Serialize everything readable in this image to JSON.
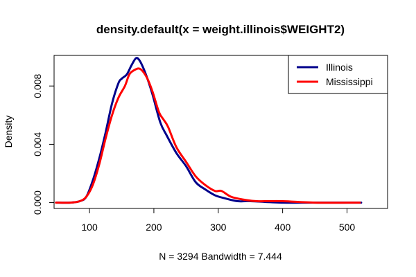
{
  "chart_data": {
    "type": "line",
    "title": "density.default(x = weight.illinois$WEIGHT2)",
    "xlabel": "N = 3294   Bandwidth = 7.444",
    "ylabel": "Density",
    "xlim": [
      45,
      563
    ],
    "ylim": [
      -0.0004,
      0.0101
    ],
    "x_ticks": [
      100,
      200,
      300,
      400,
      500
    ],
    "x_tick_labels": [
      "100",
      "200",
      "300",
      "400",
      "500"
    ],
    "y_ticks": [
      0.0,
      0.004,
      0.008
    ],
    "y_tick_labels": [
      "0.000",
      "0.004",
      "0.008"
    ],
    "legend_position": "top-right",
    "series": [
      {
        "name": "Illinois",
        "color": "#00008B",
        "x": [
          48,
          70,
          85,
          95,
          105,
          115,
          125,
          135,
          145,
          150,
          158,
          165,
          172,
          177,
          183,
          190,
          198,
          210,
          220,
          235,
          250,
          265,
          280,
          295,
          310,
          330,
          350,
          400,
          450,
          522
        ],
        "y": [
          0.0,
          0.0,
          0.0001,
          0.0004,
          0.0015,
          0.003,
          0.0048,
          0.0068,
          0.0082,
          0.0085,
          0.0088,
          0.0094,
          0.0099,
          0.0098,
          0.0093,
          0.0085,
          0.0074,
          0.0055,
          0.0046,
          0.0034,
          0.0025,
          0.0014,
          0.0009,
          0.0005,
          0.0003,
          0.0001,
          0.0001,
          0.0,
          0.0,
          0.0
        ]
      },
      {
        "name": "Mississippi",
        "color": "#FF0000",
        "x": [
          48,
          70,
          85,
          95,
          105,
          115,
          125,
          135,
          145,
          155,
          162,
          170,
          177,
          183,
          190,
          198,
          208,
          215,
          222,
          235,
          250,
          265,
          280,
          295,
          305,
          320,
          340,
          360,
          400,
          450,
          520
        ],
        "y": [
          0.0,
          0.0,
          0.0001,
          0.0004,
          0.0012,
          0.0026,
          0.0044,
          0.006,
          0.0072,
          0.008,
          0.0088,
          0.0091,
          0.0092,
          0.009,
          0.0085,
          0.0076,
          0.0062,
          0.0057,
          0.0052,
          0.0038,
          0.0028,
          0.0018,
          0.0012,
          0.0008,
          0.0008,
          0.0004,
          0.0002,
          0.0001,
          0.0001,
          0.0,
          0.0
        ]
      }
    ]
  }
}
